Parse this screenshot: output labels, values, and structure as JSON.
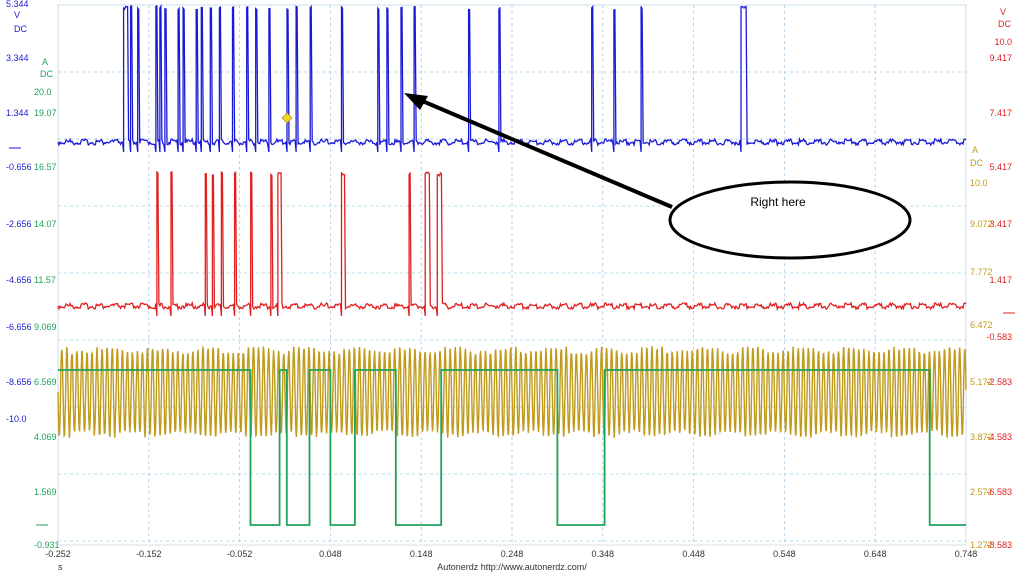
{
  "colors": {
    "blue": "#1a1ad6",
    "green": "#1fa35a",
    "red": "#e02020",
    "gold": "#c09a1a",
    "grid": "#a8cce0",
    "arrow": "#000000"
  },
  "left_axis_blue": {
    "unit": "V",
    "coupling": "DC",
    "ticks": [
      "5.344",
      "3.344",
      "1.344",
      "-0.656",
      "-2.656",
      "-4.656",
      "-6.656",
      "-8.656",
      "-10.0"
    ]
  },
  "left_axis_green": {
    "unit": "A",
    "coupling": "DC",
    "ticks": [
      "20.0",
      "19.07",
      "16.57",
      "14.07",
      "11.57",
      "9.069",
      "6.569",
      "4.069",
      "1.569",
      "-0.931"
    ]
  },
  "right_axis_red": {
    "unit": "V",
    "coupling": "DC",
    "ticks": [
      "10.0",
      "9.417",
      "7.417",
      "5.417",
      "3.417",
      "1.417",
      "-0.583",
      "-2.583",
      "-4.583",
      "-6.583",
      "-8.583"
    ]
  },
  "right_axis_gold": {
    "unit": "A",
    "coupling": "DC",
    "ticks": [
      "10.0",
      "9.072",
      "7.772",
      "6.472",
      "5.172",
      "3.872",
      "2.572",
      "1.272"
    ]
  },
  "x_axis": {
    "unit": "s",
    "ticks": [
      "-0.252",
      "-0.152",
      "-0.052",
      "0.048",
      "0.148",
      "0.248",
      "0.348",
      "0.448",
      "0.548",
      "0.648",
      "0.748"
    ]
  },
  "callout": {
    "text": "Right here"
  },
  "footer": {
    "text": "Autonerdz   http://www.autonerdz.com/"
  },
  "chart_data": {
    "type": "line",
    "x_range": [
      -0.252,
      0.748
    ],
    "grid": true,
    "series": [
      {
        "color": "blue",
        "unit": "V",
        "baseline": 1.0,
        "pulse_high": 5.3,
        "pulses": [
          [
            -0.18,
            -0.175
          ],
          [
            -0.172,
            -0.17
          ],
          [
            -0.165,
            -0.163
          ],
          [
            -0.145,
            -0.143
          ],
          [
            -0.14,
            -0.138
          ],
          [
            -0.135,
            -0.133
          ],
          [
            -0.12,
            -0.118
          ],
          [
            -0.115,
            -0.113
          ],
          [
            -0.1,
            -0.098
          ],
          [
            -0.095,
            -0.093
          ],
          [
            -0.085,
            -0.083
          ],
          [
            -0.075,
            -0.073
          ],
          [
            -0.06,
            -0.058
          ],
          [
            -0.045,
            -0.043
          ],
          [
            -0.035,
            -0.033
          ],
          [
            -0.02,
            -0.018
          ],
          [
            0.0,
            0.002
          ],
          [
            0.01,
            0.012
          ],
          [
            0.025,
            0.027
          ],
          [
            0.06,
            0.062
          ],
          [
            0.1,
            0.102
          ],
          [
            0.11,
            0.112
          ],
          [
            0.125,
            0.127
          ],
          [
            0.14,
            0.142
          ],
          [
            0.2,
            0.202
          ],
          [
            0.233,
            0.235
          ],
          [
            0.335,
            0.337
          ],
          [
            0.36,
            0.362
          ],
          [
            0.39,
            0.392
          ],
          [
            0.5,
            0.506
          ]
        ]
      },
      {
        "color": "red",
        "unit": "V",
        "baseline": 0.3,
        "pulse_high": 5.4,
        "pulses": [
          [
            -0.144,
            -0.142
          ],
          [
            -0.128,
            -0.126
          ],
          [
            -0.09,
            -0.088
          ],
          [
            -0.082,
            -0.08
          ],
          [
            -0.073,
            -0.07
          ],
          [
            -0.058,
            -0.056
          ],
          [
            -0.04,
            -0.038
          ],
          [
            -0.018,
            -0.016
          ],
          [
            -0.01,
            -0.006
          ],
          [
            0.06,
            0.064
          ],
          [
            0.134,
            0.136
          ],
          [
            0.152,
            0.157
          ],
          [
            0.165,
            0.171
          ]
        ]
      },
      {
        "color": "green",
        "unit": "A",
        "high": 6.6,
        "low": 0.1,
        "segments": [
          [
            -0.252,
            -0.19,
            "high"
          ],
          [
            -0.19,
            -0.04,
            "high"
          ],
          [
            -0.04,
            -0.008,
            "low"
          ],
          [
            -0.008,
            0.0,
            "high"
          ],
          [
            0.0,
            0.025,
            "low"
          ],
          [
            0.025,
            0.048,
            "high"
          ],
          [
            0.048,
            0.075,
            "low"
          ],
          [
            0.075,
            0.12,
            "high"
          ],
          [
            0.12,
            0.17,
            "low"
          ],
          [
            0.17,
            0.298,
            "high"
          ],
          [
            0.298,
            0.35,
            "low"
          ],
          [
            0.35,
            0.708,
            "high"
          ],
          [
            0.708,
            0.728,
            "low"
          ]
        ]
      },
      {
        "color": "gold",
        "unit": "A",
        "center": 5.2,
        "amplitude": 1.1,
        "frequency_hz": 180
      }
    ]
  }
}
